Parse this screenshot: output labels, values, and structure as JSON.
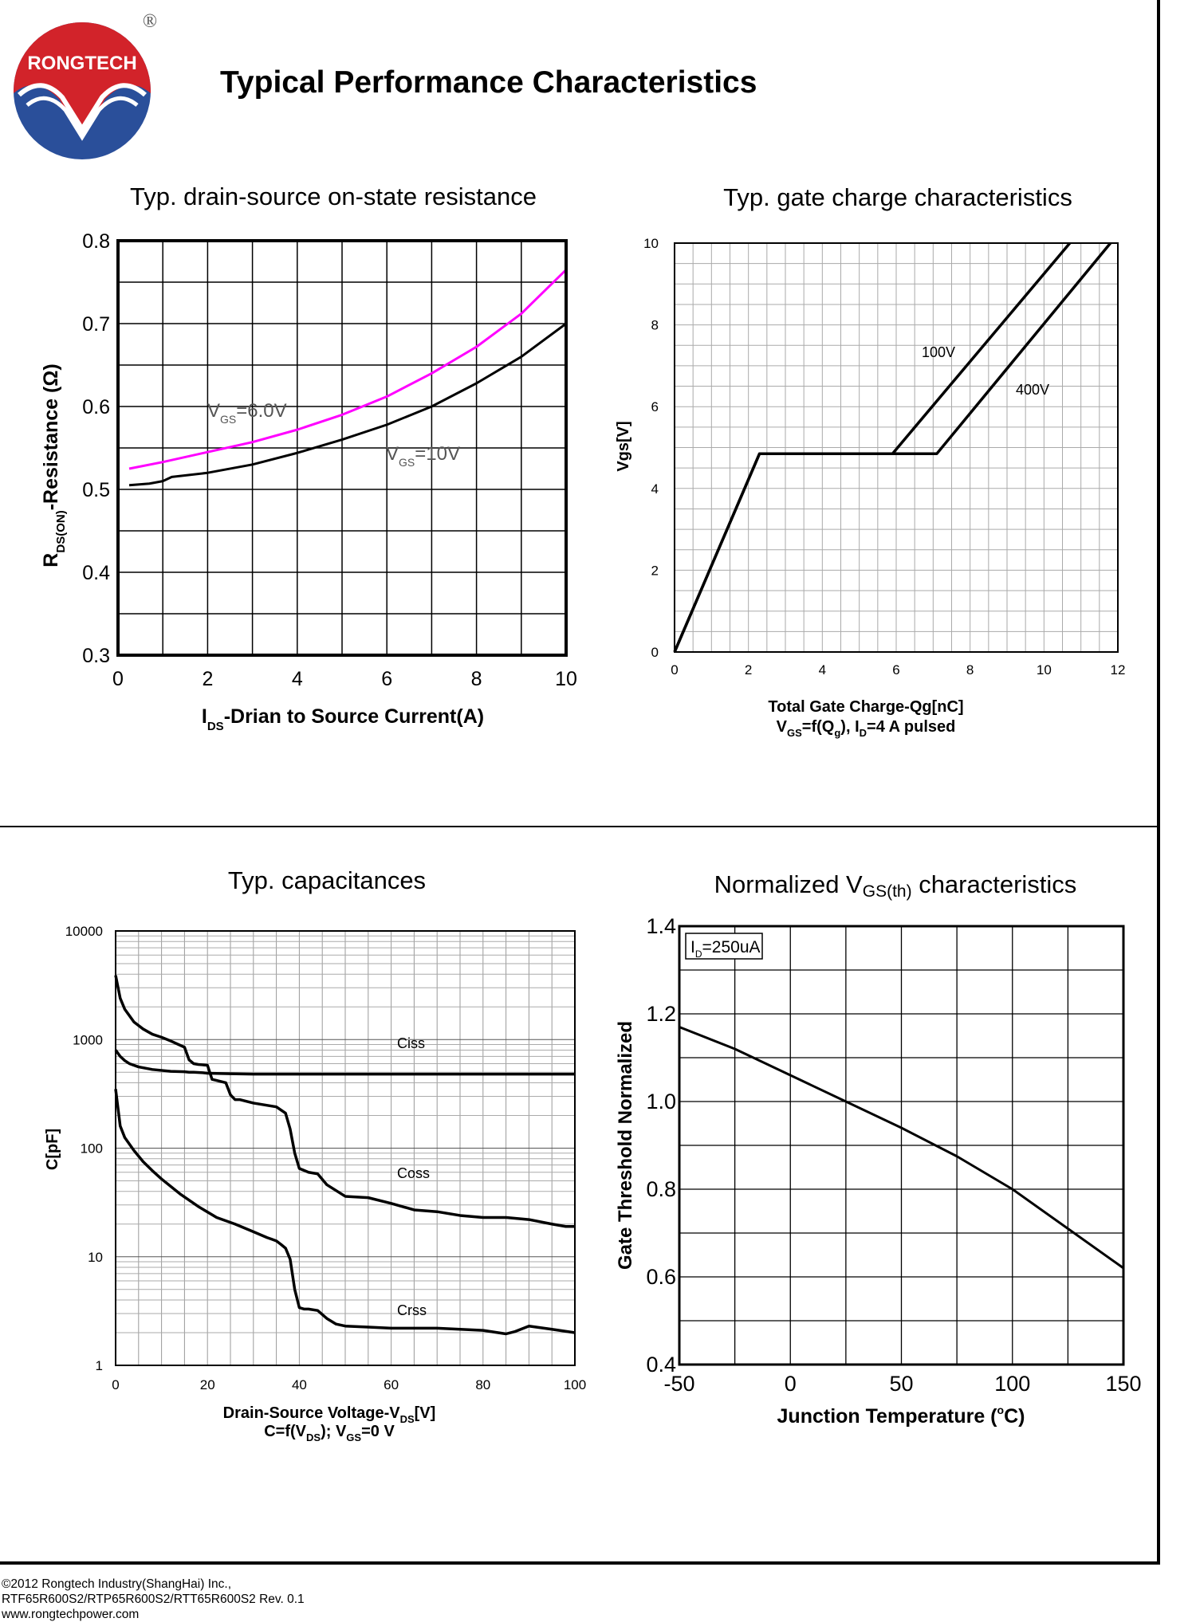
{
  "page": {
    "title": "Typical Performance Characteristics",
    "brand": "RONGTECH",
    "registered_mark": "®",
    "footer": {
      "line1": "©2012 Rongtech Industry(ShangHai) Inc.,",
      "line2": "RTF65R600S2/RTP65R600S2/RTT65R600S2 Rev. 0.1",
      "line3": "www.rongtechpower.com"
    },
    "colors": {
      "logo_red": "#d2232a",
      "logo_blue": "#2a4f9a",
      "magenta": "#ff00ff",
      "black": "#000000"
    }
  },
  "chart_data": [
    {
      "type": "line",
      "title": "Typ. drain-source on-state resistance",
      "xlabel": "I",
      "xlabel_sub": "DS",
      "xlabel_rest": "-Drian to Source Current(A)",
      "ylabel": "R",
      "ylabel_sub": "DS(ON)",
      "ylabel_rest": "-Resistance (Ω)",
      "xlim": [
        0,
        10
      ],
      "ylim": [
        0.3,
        0.8
      ],
      "xticks": [
        0,
        2,
        4,
        6,
        8,
        10
      ],
      "yticks": [
        "0.3",
        "0.4",
        "0.5",
        "0.6",
        "0.7",
        "0.8"
      ],
      "grid": true,
      "series": [
        {
          "name": "VGS=6.0V",
          "label_main": "V",
          "label_sub": "GS",
          "label_rest": "=6.0V",
          "color": "#ff00ff",
          "x": [
            0.25,
            1,
            2,
            3,
            4,
            5,
            6,
            7,
            8,
            9,
            10
          ],
          "y": [
            0.525,
            0.533,
            0.545,
            0.557,
            0.572,
            0.59,
            0.612,
            0.64,
            0.672,
            0.712,
            0.765
          ]
        },
        {
          "name": "VGS=10V",
          "label_main": "V",
          "label_sub": "GS",
          "label_rest": "=10V",
          "color": "#000000",
          "x": [
            0.25,
            0.7,
            1,
            1.2,
            2,
            3,
            4,
            5,
            6,
            7,
            8,
            9,
            10
          ],
          "y": [
            0.505,
            0.507,
            0.51,
            0.515,
            0.52,
            0.53,
            0.544,
            0.56,
            0.578,
            0.6,
            0.628,
            0.66,
            0.7
          ]
        }
      ]
    },
    {
      "type": "line",
      "title": "Typ. gate charge characteristics",
      "xlabel": "Total Gate Charge-Qg[nC]",
      "subtitle_line": "V",
      "subtitle_sub1": "GS",
      "subtitle_mid": "=f(Q",
      "subtitle_sub2": "g",
      "subtitle_mid2": "), I",
      "subtitle_sub3": "D",
      "subtitle_rest": "=4 A  pulsed",
      "ylabel": "Vgs[V]",
      "xlim": [
        0,
        12
      ],
      "ylim": [
        0,
        10
      ],
      "xticks": [
        0,
        2,
        4,
        6,
        8,
        10,
        12
      ],
      "yticks": [
        0,
        2,
        4,
        6,
        8,
        10
      ],
      "grid": true,
      "series": [
        {
          "name": "100V",
          "x": [
            0,
            2.3,
            5.9,
            10.7
          ],
          "y": [
            0,
            4.85,
            4.85,
            10
          ]
        },
        {
          "name": "400V",
          "x": [
            0,
            2.3,
            7.1,
            11.8
          ],
          "y": [
            0,
            4.85,
            4.85,
            10
          ]
        }
      ]
    },
    {
      "type": "line",
      "title": "Typ. capacitances",
      "xlabel": "Drain-Source Voltage-V",
      "xlabel_sub": "DS",
      "xlabel_rest": "[V]",
      "subtitle_line": "C=f(V",
      "subtitle_sub1": "DS",
      "subtitle_mid": "); V",
      "subtitle_sub2": "GS",
      "subtitle_rest": "=0 V",
      "ylabel": "C[pF]",
      "xlim": [
        0,
        100
      ],
      "ylim": [
        1,
        10000
      ],
      "yscale": "log",
      "xticks": [
        0,
        20,
        40,
        60,
        80,
        100
      ],
      "yticks": [
        "1",
        "10",
        "100",
        "1000",
        "10000"
      ],
      "grid": true,
      "series": [
        {
          "name": "Ciss",
          "x": [
            0,
            1,
            2,
            3,
            5,
            8,
            10,
            12,
            15,
            16,
            17,
            19,
            20,
            25,
            30,
            40,
            60,
            80,
            100
          ],
          "y": [
            800,
            700,
            640,
            600,
            560,
            530,
            520,
            510,
            505,
            500,
            500,
            495,
            490,
            485,
            480,
            480,
            480,
            480,
            480
          ]
        },
        {
          "name": "Coss",
          "x": [
            0,
            1,
            2,
            4,
            6,
            8,
            10,
            12,
            15,
            16,
            17,
            18,
            20,
            21,
            22,
            24,
            25,
            26,
            27,
            30,
            35,
            37,
            38,
            39,
            40,
            42,
            44,
            46,
            50,
            55,
            60,
            65,
            70,
            75,
            80,
            85,
            90,
            95,
            98,
            100
          ],
          "y": [
            3900,
            2400,
            1900,
            1450,
            1250,
            1120,
            1050,
            970,
            850,
            650,
            600,
            590,
            580,
            430,
            420,
            400,
            310,
            280,
            280,
            260,
            240,
            210,
            150,
            90,
            65,
            60,
            58,
            46,
            36,
            35,
            31,
            27,
            26,
            24,
            23,
            23,
            22,
            20,
            19,
            19
          ]
        },
        {
          "name": "Crss",
          "x": [
            0,
            1,
            2,
            4,
            6,
            8,
            10,
            14,
            18,
            22,
            26,
            30,
            33,
            34,
            35,
            36,
            37,
            38,
            39,
            40,
            41,
            42,
            44,
            46,
            48,
            50,
            55,
            60,
            70,
            80,
            85,
            87,
            90,
            95,
            100
          ],
          "y": [
            350,
            160,
            125,
            95,
            75,
            62,
            52,
            38,
            29,
            23,
            20,
            17,
            15,
            14.5,
            14,
            13,
            12,
            9.5,
            5,
            3.4,
            3.3,
            3.3,
            3.2,
            2.7,
            2.4,
            2.3,
            2.25,
            2.2,
            2.2,
            2.1,
            1.95,
            2.05,
            2.3,
            2.15,
            2.0
          ]
        }
      ]
    },
    {
      "type": "line",
      "title_main": "Normalized V",
      "title_sub": "GS(th)",
      "title_rest": " characteristics",
      "legend_main": "I",
      "legend_sub": "D",
      "legend_rest": "=250uA",
      "xlabel": "Junction Temperature (",
      "xlabel_sup": "o",
      "xlabel_rest": "C)",
      "ylabel": "Gate Threshold Normalized",
      "xlim": [
        -50,
        150
      ],
      "ylim": [
        0.4,
        1.4
      ],
      "xticks": [
        "-50",
        "0",
        "50",
        "100",
        "150"
      ],
      "yticks": [
        "0.4",
        "0.6",
        "0.8",
        "1.0",
        "1.2",
        "1.4"
      ],
      "grid": true,
      "series": [
        {
          "name": "ID=250uA",
          "x": [
            -50,
            -25,
            0,
            25,
            50,
            75,
            100,
            125,
            150
          ],
          "y": [
            1.17,
            1.12,
            1.06,
            1.0,
            0.94,
            0.875,
            0.8,
            0.71,
            0.62
          ]
        }
      ]
    }
  ]
}
